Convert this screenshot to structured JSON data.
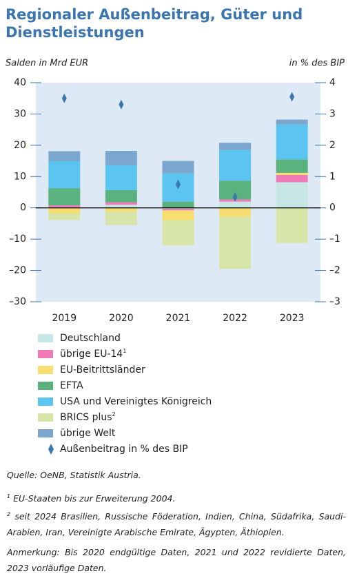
{
  "chart_data": {
    "type": "bar",
    "title": [
      "Regionaler Außenbeitrag, Güter und",
      "Dienstleistungen"
    ],
    "y_label": "Salden in Mrd EUR",
    "y2_label": "in % des BIP",
    "categories": [
      "2019",
      "2020",
      "2021",
      "2022",
      "2023"
    ],
    "series": [
      {
        "name": "Deutschland",
        "color": "#c6e7e5",
        "values": [
          0.2,
          1.0,
          -0.3,
          2.0,
          8.2
        ]
      },
      {
        "name": "übrige EU-14",
        "note": "1",
        "color": "#f07ab8",
        "values": [
          0.6,
          0.8,
          -0.5,
          0.7,
          2.3
        ]
      },
      {
        "name": "EU-Beitrittsländer",
        "color": "#f7dc6f",
        "values": [
          -1.8,
          -1.2,
          -3.2,
          -2.8,
          0.7
        ]
      },
      {
        "name": "EFTA",
        "color": "#5ab27f",
        "values": [
          5.5,
          3.9,
          2.0,
          6.0,
          4.3
        ]
      },
      {
        "name": "USA und Vereinigtes Königreich",
        "color": "#5bc4f1",
        "values": [
          8.6,
          7.9,
          9.0,
          9.8,
          11.1
        ]
      },
      {
        "name": "BRICS plus",
        "note": "2",
        "color": "#d7e5a8",
        "values": [
          -2.1,
          -4.3,
          -8.0,
          -16.7,
          -11.2
        ]
      },
      {
        "name": "übrige Welt",
        "color": "#7ba7cf",
        "values": [
          3.2,
          4.6,
          4.0,
          2.3,
          1.6
        ]
      },
      {
        "name": "Außenbeitrag in % des BIP",
        "type": "diamond",
        "axis": "y2",
        "color": "#3a76b0",
        "values": [
          3.5,
          3.3,
          0.75,
          0.35,
          3.55
        ]
      }
    ],
    "ylim": [
      -30,
      40
    ],
    "yticks": [
      {
        "value": -30,
        "label": "–30"
      },
      {
        "value": -20,
        "label": "–20"
      },
      {
        "value": -10,
        "label": "–10"
      },
      0,
      10,
      20,
      30,
      40
    ],
    "y2lim": [
      -3,
      4
    ],
    "y2ticks": [
      {
        "value": -3,
        "label": "–3"
      },
      {
        "value": -2,
        "label": "–2"
      },
      {
        "value": -1,
        "label": "–1"
      },
      0,
      1,
      2,
      3,
      4
    ],
    "source": "Quelle: OeNB, Statistik Austria.",
    "footnotes": [
      {
        "marker": "1",
        "text": "EU-Staaten bis zur Erweiterung 2004."
      },
      {
        "marker": "2",
        "text": "seit 2024 Brasilien, Russische Föderation, Indien, China, Südafrika, Saudi-Arabien, Iran, Vereinigte Arabische Emirate, Ägypten, Äthiopien."
      }
    ],
    "remark": "Anmerkung: Bis 2020 endgültige Daten, 2021 und 2022 revidierte Daten, 2023 vorläufige Daten."
  }
}
